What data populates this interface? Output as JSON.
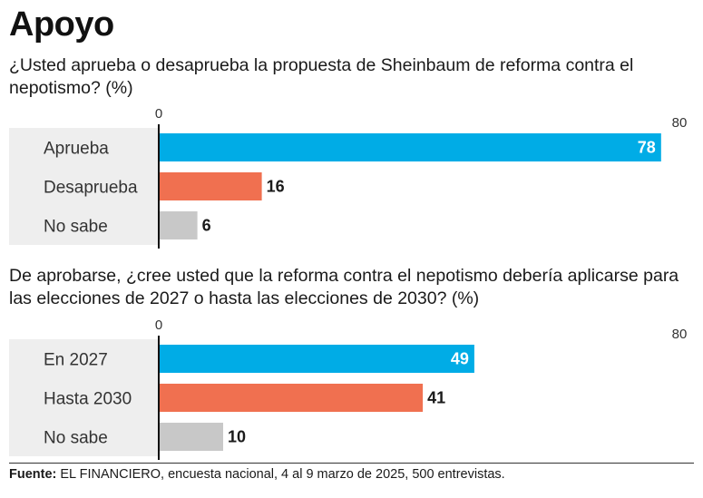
{
  "title": "Apoyo",
  "footer": {
    "label": "Fuente:",
    "text": " EL FINANCIERO, encuesta nacional, 4 al 9 marzo de 2025, 500 entrevistas."
  },
  "colors": {
    "series": [
      "#00ace6",
      "#f07050",
      "#c8c8c8"
    ],
    "label_inside": "#ffffff",
    "label_outside": "#1a1a1a",
    "band": "#eeeeee"
  },
  "chart_data": [
    {
      "type": "bar",
      "orientation": "horizontal",
      "title": "¿Usted aprueba o desaprueba la propuesta de Sheinbaum de reforma contra el nepotismo? (%)",
      "categories": [
        "Aprueba",
        "Desaprueba",
        "No sabe"
      ],
      "values": [
        78,
        16,
        6
      ],
      "xlim": [
        0,
        80
      ],
      "tick_labels": [
        "0",
        "80"
      ],
      "grid": false
    },
    {
      "type": "bar",
      "orientation": "horizontal",
      "title": "De aprobarse, ¿cree usted que la reforma contra el nepotismo debería aplicarse para las elecciones de 2027 o hasta las elecciones de 2030? (%)",
      "categories": [
        "En 2027",
        "Hasta 2030",
        "No sabe"
      ],
      "values": [
        49,
        41,
        10
      ],
      "xlim": [
        0,
        80
      ],
      "tick_labels": [
        "0",
        "80"
      ],
      "grid": false
    }
  ]
}
